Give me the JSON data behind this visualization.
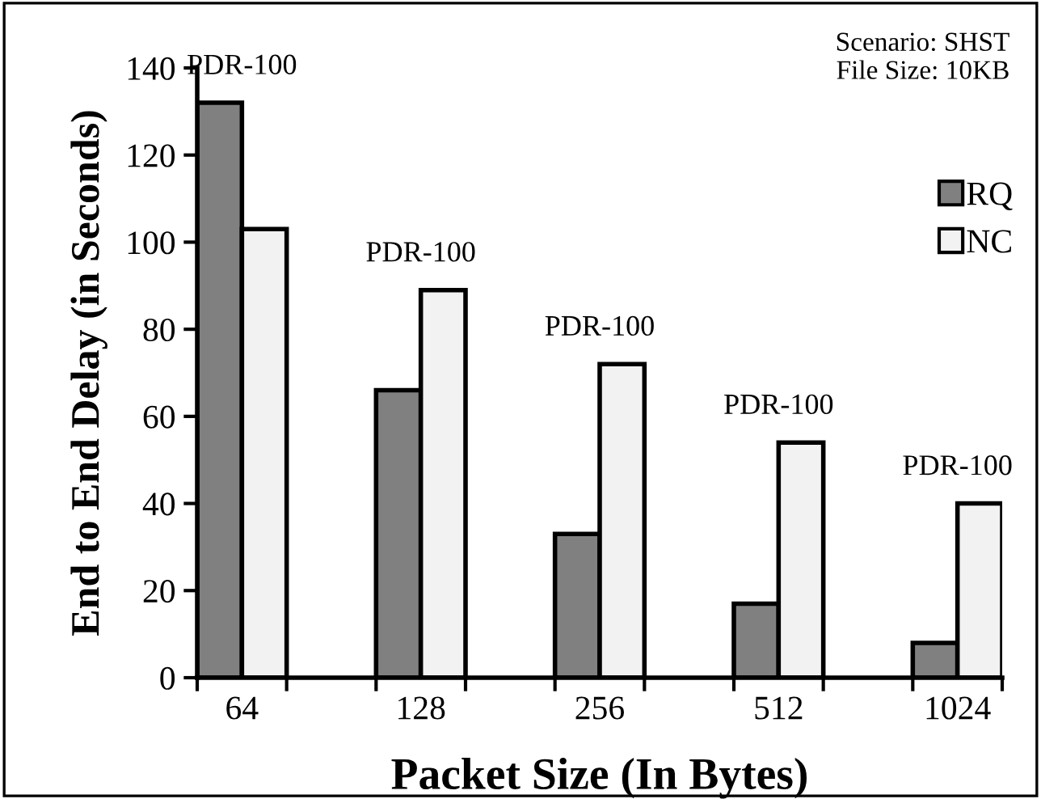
{
  "chart_data": {
    "type": "bar",
    "xlabel": "Packet Size (In Bytes)",
    "ylabel": "End to End Delay (in Seconds)",
    "categories": [
      "64",
      "128",
      "256",
      "512",
      "1024"
    ],
    "series": [
      {
        "name": "RQ",
        "color": "#808080",
        "values": [
          132,
          66,
          33,
          17,
          8
        ]
      },
      {
        "name": "NC",
        "color": "#f2f2f2",
        "values": [
          103,
          89,
          72,
          54,
          40
        ]
      }
    ],
    "ylim": [
      0,
      140
    ],
    "yticks": [
      0,
      20,
      40,
      60,
      80,
      100,
      120,
      140
    ],
    "grid": false,
    "legend": "right",
    "annotations": [
      "PDR-100",
      "PDR-100",
      "PDR-100",
      "PDR-100",
      "PDR-100",
      "Scenario: SHST\nFile Size: 10KB"
    ]
  }
}
